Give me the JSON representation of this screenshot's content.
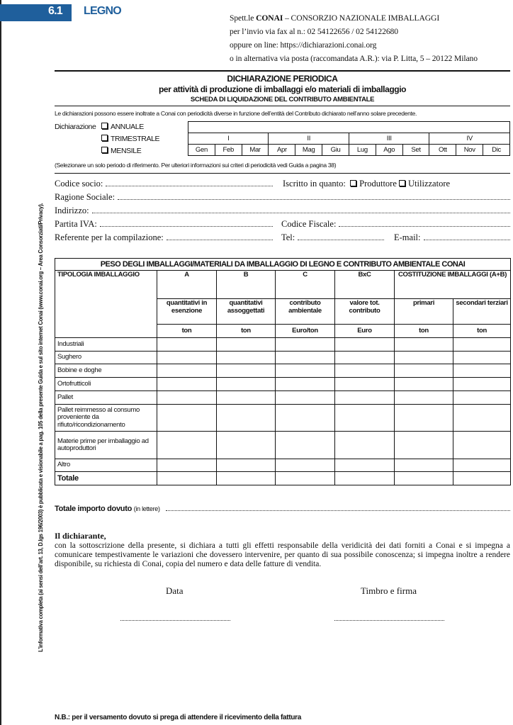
{
  "colors": {
    "brand": "#1f5f9c"
  },
  "section": {
    "number": "6.1",
    "title": "LEGNO"
  },
  "address": {
    "line1_pre": "Spett.le ",
    "line1_bold": "CONAI",
    "line1_post": " – CONSORZIO NAZIONALE IMBALLAGGI",
    "line2": "per l’invio via fax al n.: 02 54122656 / 02 54122680",
    "line3": "oppure on line: https://dichiarazioni.conai.org",
    "line4": "o in alternativa via posta (raccomandata A.R.): via P. Litta, 5 – 20122 Milano"
  },
  "header": {
    "title": "DICHIARAZIONE PERIODICA",
    "subtitle": "per attività di produzione di imballaggi e/o materiali di imballaggio",
    "subsubtitle": "SCHEDA DI LIQUIDAZIONE DEL CONTRIBUTO AMBIENTALE"
  },
  "periodicity": {
    "note": "Le dichiarazioni possono essere inoltrate a Conai con periodicità diverse in funzione dell’entità del Contributo dichiarato nell’anno solare precedente.",
    "label": "Dichiarazione",
    "options": [
      "ANNUALE",
      "TRIMESTRALE",
      "MENSILE"
    ],
    "quarters": [
      "I",
      "II",
      "III",
      "IV"
    ],
    "months": [
      "Gen",
      "Feb",
      "Mar",
      "Apr",
      "Mag",
      "Giu",
      "Lug",
      "Ago",
      "Set",
      "Ott",
      "Nov",
      "Dic"
    ],
    "hint": "(Selezionare un solo periodo di riferimento. Per ulteriori informazioni sui criteri di periodicità vedi Guida a pagina 38)"
  },
  "fields": {
    "codice_socio": "Codice socio:",
    "iscritto": "Iscritto in quanto:",
    "produttore": "Produttore",
    "utilizzatore": "Utilizzatore",
    "ragione_sociale": "Ragione Sociale:",
    "indirizzo": "Indirizzo:",
    "partita_iva": "Partita IVA:",
    "codice_fiscale": "Codice Fiscale:",
    "referente": "Referente per la compilazione:",
    "tel": "Tel:",
    "email": "E-mail:"
  },
  "table": {
    "title": "PESO DEGLI IMBALLAGGI/MATERIALI DA IMBALLAGGIO DI LEGNO E CONTRIBUTO AMBIENTALE CONAI",
    "type_header": "TIPOLOGIA IMBALLAGGIO",
    "col_letters": [
      "A",
      "B",
      "C",
      "BxC"
    ],
    "costituzione": "COSTITUZIONE IMBALLAGGI (A+B)",
    "col_desc": [
      "quantitativi in esenzione",
      "quantitativi assoggettati",
      "contributo ambientale",
      "valore tot. contributo",
      "primari",
      "secondari terziari"
    ],
    "units": [
      "ton",
      "ton",
      "Euro/ton",
      "Euro",
      "ton",
      "ton"
    ],
    "rows": [
      "Industriali",
      "Sughero",
      "Bobine e doghe",
      "Ortofrutticoli",
      "Pallet",
      "Pallet reimmesso al consumo proveniente da rifiuto/ricondizionamento",
      "Materie prime per imballaggio ad autoproduttori",
      "Altro",
      "Totale"
    ]
  },
  "totale": {
    "label": "Totale importo dovuto",
    "hint": "(in lettere)"
  },
  "declaration": {
    "heading": "Il dichiarante,",
    "text": "con la sottoscrizione della presente, si dichiara a tutti gli effetti responsabile della veridicità dei dati forniti a Conai e si impegna a comunicare tempestivamente le variazioni che dovessero intervenire, per quanto di sua possibile conoscenza; si impegna inoltre a rendere disponibile, su richiesta di Conai, copia del numero e data delle fatture di vendita."
  },
  "signature": {
    "data": "Data",
    "timbro": "Timbro e firma"
  },
  "footnote": "N.B.: per il versamento dovuto si prega di attendere il ricevimento della fattura",
  "side_note": "L’informativa completa (ai sensi dell’art. 13, D.lgs 196/2003) è pubblicata e visionabile a pag. 105 della presente Guida e sul sito internet Conai (www.conai.org – Area Consorziati/Privacy)."
}
